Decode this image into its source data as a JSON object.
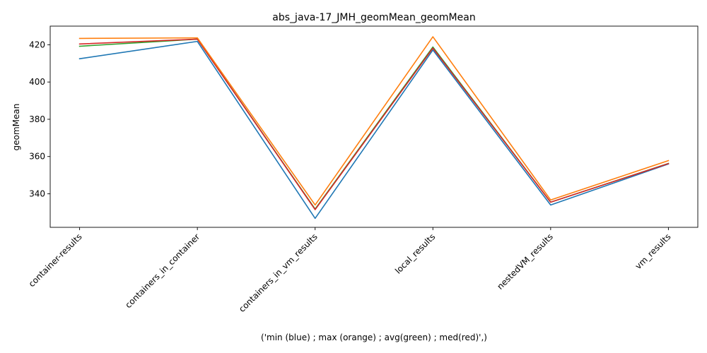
{
  "chart_data": {
    "type": "line",
    "title": "abs_java-17_JMH_geomMean_geomMean",
    "xlabel": "('min (blue) ; max (orange) ; avg(green) ; med(red)',)",
    "ylabel": "geomMean",
    "categories": [
      "container-results",
      "containers_in_container",
      "containers_in_vm_results",
      "local_results",
      "nestedVM_results",
      "vm_results"
    ],
    "ylim": [
      322,
      430
    ],
    "yticks": [
      340,
      360,
      380,
      400,
      420
    ],
    "grid": false,
    "series": [
      {
        "color": "#1f77b4",
        "values": [
          412.5,
          421.8,
          326.8,
          417.2,
          334.0,
          356.0
        ]
      },
      {
        "color": "#2ca02c",
        "values": [
          419.2,
          423.0,
          331.8,
          418.8,
          335.5,
          356.3
        ]
      },
      {
        "color": "#d62728",
        "values": [
          420.4,
          423.0,
          331.5,
          418.2,
          335.5,
          356.2
        ]
      },
      {
        "color": "#ff7f0e",
        "values": [
          423.4,
          423.7,
          334.0,
          424.3,
          336.7,
          357.8
        ]
      }
    ]
  }
}
